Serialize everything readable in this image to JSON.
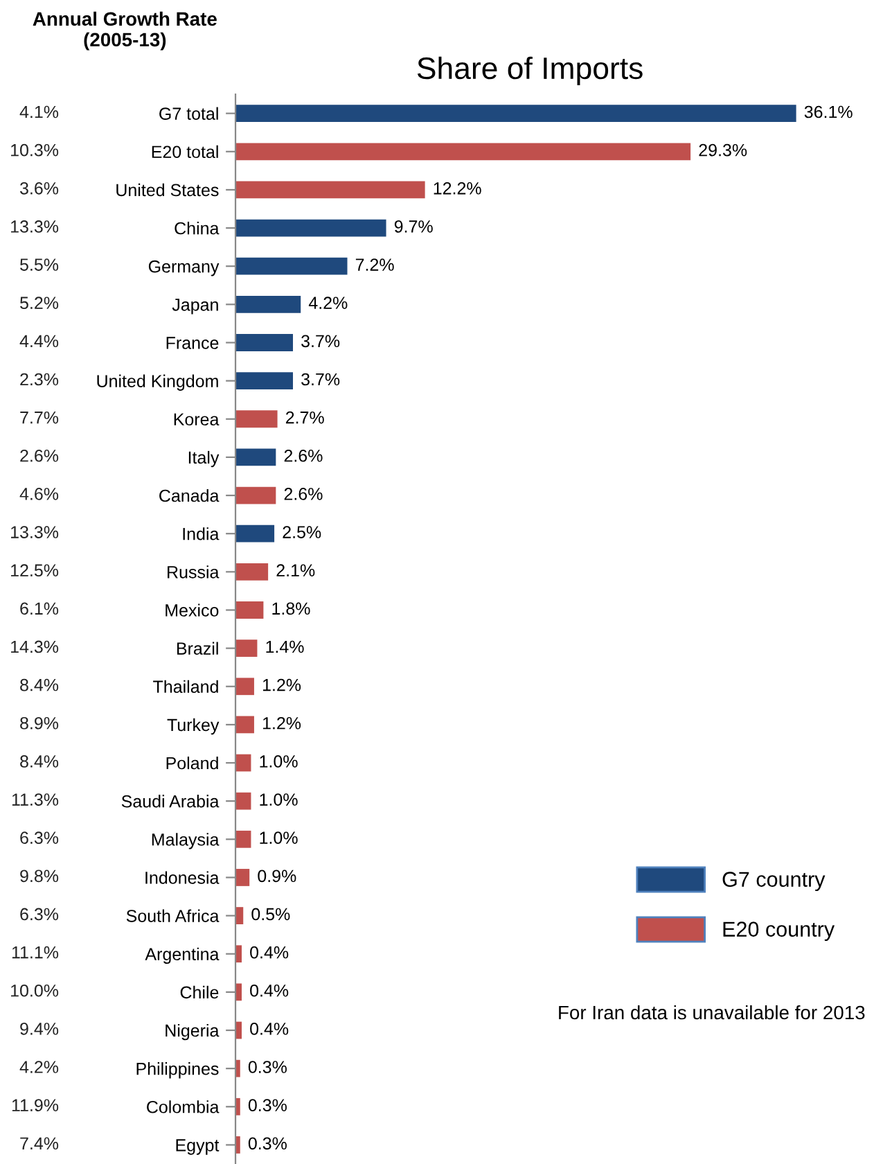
{
  "chart_data": {
    "type": "bar",
    "orientation": "horizontal",
    "title": "Share of Imports",
    "categories": [
      "G7 total",
      "E20 total",
      "United States",
      "China",
      "Germany",
      "Japan",
      "France",
      "United Kingdom",
      "Korea",
      "Italy",
      "Canada",
      "India",
      "Russia",
      "Mexico",
      "Brazil",
      "Thailand",
      "Turkey",
      "Poland",
      "Saudi Arabia",
      "Malaysia",
      "Indonesia",
      "South Africa",
      "Argentina",
      "Chile",
      "Nigeria",
      "Philippines",
      "Colombia",
      "Egypt"
    ],
    "series": [
      {
        "name": "G7 country",
        "color": "#1f497d",
        "values": [
          36.1,
          null,
          null,
          9.7,
          7.2,
          4.2,
          3.7,
          3.7,
          null,
          2.6,
          null,
          2.5,
          null,
          null,
          null,
          null,
          null,
          null,
          null,
          null,
          null,
          null,
          null,
          null,
          null,
          null,
          null,
          null
        ],
        "value_labels": [
          "36.1%",
          null,
          null,
          "9.7%",
          "7.2%",
          "4.2%",
          "3.7%",
          "3.7%",
          null,
          "2.6%",
          null,
          "2.5%",
          null,
          null,
          null,
          null,
          null,
          null,
          null,
          null,
          null,
          null,
          null,
          null,
          null,
          null,
          null,
          null
        ]
      },
      {
        "name": "E20 country",
        "color": "#c0504d",
        "values": [
          null,
          29.3,
          12.2,
          null,
          null,
          null,
          null,
          null,
          2.7,
          null,
          2.6,
          null,
          2.1,
          1.8,
          1.4,
          1.2,
          1.2,
          1.0,
          1.0,
          1.0,
          0.9,
          0.5,
          0.4,
          0.4,
          0.4,
          0.3,
          0.3,
          0.3
        ],
        "value_labels": [
          null,
          "29.3%",
          "12.2%",
          null,
          null,
          null,
          null,
          null,
          "2.7%",
          null,
          "2.6%",
          null,
          "2.1%",
          "1.8%",
          "1.4%",
          "1.2%",
          "1.2%",
          "1.0%",
          "1.0%",
          "1.0%",
          "0.9%",
          "0.5%",
          "0.4%",
          "0.4%",
          "0.4%",
          "0.3%",
          "0.3%",
          "0.3%"
        ]
      }
    ],
    "tick_labels": "y",
    "grid": false,
    "legend": "bottom right",
    "annotations": [
      "Annual Growth Rate\n(2005-13)",
      "4.1%",
      "10.3%",
      "3.6%",
      "13.3%",
      "5.5%",
      "5.2%",
      "4.4%",
      "2.3%",
      "7.7%",
      "2.6%",
      "4.6%",
      "13.3%",
      "12.5%",
      "6.1%",
      "14.3%",
      "8.4%",
      "8.9%",
      "8.4%",
      "11.3%",
      "6.3%",
      "9.8%",
      "6.3%",
      "11.1%",
      "10.0%",
      "9.4%",
      "4.2%",
      "11.9%",
      "7.4%",
      "For Iran data is unavailable for 2013"
    ]
  }
}
